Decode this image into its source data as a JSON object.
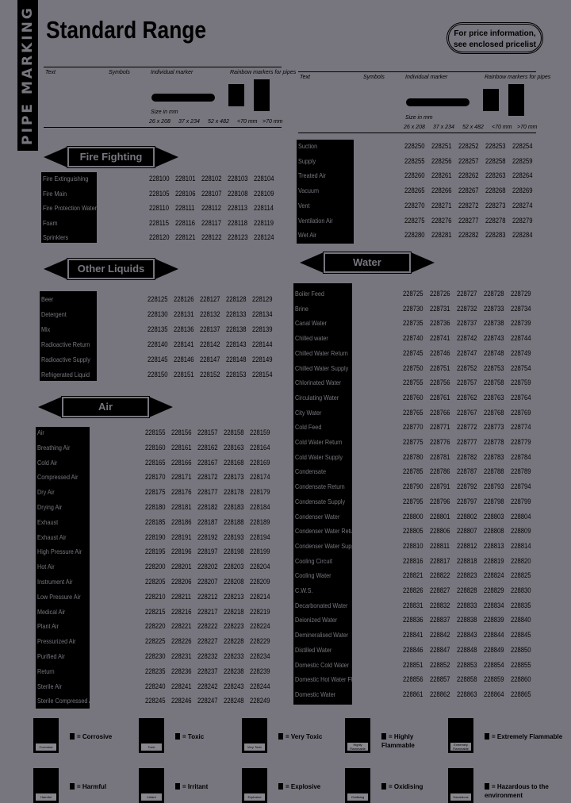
{
  "header": {
    "side_label": "PIPE MARKING",
    "title": "Standard Range",
    "price_note_line1": "For price information,",
    "price_note_line2": "see enclosed pricelist"
  },
  "columns": {
    "text": "Text",
    "symbols": "Symbols",
    "individual_marker": "Individual marker",
    "rainbow_markers": "Rainbow markers for pipes",
    "size_label": "Size in mm",
    "sizes": [
      "26 x 208",
      "37 x 234",
      "52 x 482",
      "<70 mm",
      ">70 mm"
    ]
  },
  "sections": [
    {
      "title": "Fire Fighting",
      "rows": [
        {
          "name": "Fire Extinguishing",
          "codes": [
            "228100",
            "228101",
            "228102",
            "228103",
            "228104"
          ]
        },
        {
          "name": "Fire Main",
          "codes": [
            "228105",
            "228106",
            "228107",
            "228108",
            "228109"
          ]
        },
        {
          "name": "Fire Protection Water",
          "codes": [
            "228110",
            "228111",
            "228112",
            "228113",
            "228114"
          ]
        },
        {
          "name": "Foam",
          "codes": [
            "228115",
            "228116",
            "228117",
            "228118",
            "228119"
          ]
        },
        {
          "name": "Sprinklers",
          "codes": [
            "228120",
            "228121",
            "228122",
            "228123",
            "228124"
          ]
        }
      ]
    },
    {
      "title": "Other Liquids",
      "rows": [
        {
          "name": "Beer",
          "codes": [
            "228125",
            "228126",
            "228127",
            "228128",
            "228129"
          ]
        },
        {
          "name": "Detergent",
          "codes": [
            "228130",
            "228131",
            "228132",
            "228133",
            "228134"
          ]
        },
        {
          "name": "Mix",
          "codes": [
            "228135",
            "228136",
            "228137",
            "228138",
            "228139"
          ]
        },
        {
          "name": "Radioactive Return",
          "codes": [
            "228140",
            "228141",
            "228142",
            "228143",
            "228144"
          ]
        },
        {
          "name": "Radioactive Supply",
          "codes": [
            "228145",
            "228146",
            "228147",
            "228148",
            "228149"
          ]
        },
        {
          "name": "Refrigerated Liquid",
          "codes": [
            "228150",
            "228151",
            "228152",
            "228153",
            "228154"
          ]
        }
      ]
    },
    {
      "title": "Air",
      "rows": [
        {
          "name": "Air",
          "codes": [
            "228155",
            "228156",
            "228157",
            "228158",
            "228159"
          ]
        },
        {
          "name": "Breathing Air",
          "codes": [
            "228160",
            "228161",
            "228162",
            "228163",
            "228164"
          ]
        },
        {
          "name": "Cold Air",
          "codes": [
            "228165",
            "228166",
            "228167",
            "228168",
            "228169"
          ]
        },
        {
          "name": "Compressed Air",
          "codes": [
            "228170",
            "228171",
            "228172",
            "228173",
            "228174"
          ]
        },
        {
          "name": "Dry Air",
          "codes": [
            "228175",
            "228176",
            "228177",
            "228178",
            "228179"
          ]
        },
        {
          "name": "Drying Air",
          "codes": [
            "228180",
            "228181",
            "228182",
            "228183",
            "228184"
          ]
        },
        {
          "name": "Exhaust",
          "codes": [
            "228185",
            "228186",
            "228187",
            "228188",
            "228189"
          ]
        },
        {
          "name": "Exhaust Air",
          "codes": [
            "228190",
            "228191",
            "228192",
            "228193",
            "228194"
          ]
        },
        {
          "name": "High Pressure Air",
          "codes": [
            "228195",
            "228196",
            "228197",
            "228198",
            "228199"
          ]
        },
        {
          "name": "Hot Air",
          "codes": [
            "228200",
            "228201",
            "228202",
            "228203",
            "228204"
          ]
        },
        {
          "name": "Instrument Air",
          "codes": [
            "228205",
            "228206",
            "228207",
            "228208",
            "228209"
          ]
        },
        {
          "name": "Low Pressure Air",
          "codes": [
            "228210",
            "228211",
            "228212",
            "228213",
            "228214"
          ]
        },
        {
          "name": "Medical Air",
          "codes": [
            "228215",
            "228216",
            "228217",
            "228218",
            "228219"
          ]
        },
        {
          "name": "Plant Air",
          "codes": [
            "228220",
            "228221",
            "228222",
            "228223",
            "228224"
          ]
        },
        {
          "name": "Pressurized Air",
          "codes": [
            "228225",
            "228226",
            "228227",
            "228228",
            "228229"
          ]
        },
        {
          "name": "Purified Air",
          "codes": [
            "228230",
            "228231",
            "228232",
            "228233",
            "228234"
          ]
        },
        {
          "name": "Return",
          "codes": [
            "228235",
            "228236",
            "228237",
            "228238",
            "228239"
          ]
        },
        {
          "name": "Sterile Air",
          "codes": [
            "228240",
            "228241",
            "228242",
            "228243",
            "228244"
          ]
        },
        {
          "name": "Sterile Compressed Air",
          "codes": [
            "228245",
            "228246",
            "228247",
            "228248",
            "228249"
          ]
        }
      ]
    },
    {
      "title": "",
      "rows": [
        {
          "name": "Suction",
          "codes": [
            "228250",
            "228251",
            "228252",
            "228253",
            "228254"
          ]
        },
        {
          "name": "Supply",
          "codes": [
            "228255",
            "228256",
            "228257",
            "228258",
            "228259"
          ]
        },
        {
          "name": "Treated Air",
          "codes": [
            "228260",
            "228261",
            "228262",
            "228263",
            "228264"
          ]
        },
        {
          "name": "Vacuum",
          "codes": [
            "228265",
            "228266",
            "228267",
            "228268",
            "228269"
          ]
        },
        {
          "name": "Vent",
          "codes": [
            "228270",
            "228271",
            "228272",
            "228273",
            "228274"
          ]
        },
        {
          "name": "Ventilation Air",
          "codes": [
            "228275",
            "228276",
            "228277",
            "228278",
            "228279"
          ]
        },
        {
          "name": "Wet Air",
          "codes": [
            "228280",
            "228281",
            "228282",
            "228283",
            "228284"
          ]
        }
      ]
    },
    {
      "title": "Water",
      "rows": [
        {
          "name": "Boiler Feed",
          "codes": [
            "228725",
            "228726",
            "228727",
            "228728",
            "228729"
          ]
        },
        {
          "name": "Brine",
          "codes": [
            "228730",
            "228731",
            "228732",
            "228733",
            "228734"
          ]
        },
        {
          "name": "Canal Water",
          "codes": [
            "228735",
            "228736",
            "228737",
            "228738",
            "228739"
          ]
        },
        {
          "name": "Chilled water",
          "codes": [
            "228740",
            "228741",
            "228742",
            "228743",
            "228744"
          ]
        },
        {
          "name": "Chilled Water Return",
          "codes": [
            "228745",
            "228746",
            "228747",
            "228748",
            "228749"
          ]
        },
        {
          "name": "Chilled Water Supply",
          "codes": [
            "228750",
            "228751",
            "228752",
            "228753",
            "228754"
          ]
        },
        {
          "name": "Chlorinated Water",
          "codes": [
            "228755",
            "228756",
            "228757",
            "228758",
            "228759"
          ]
        },
        {
          "name": "Circulating Water",
          "codes": [
            "228760",
            "228761",
            "228762",
            "228763",
            "228764"
          ]
        },
        {
          "name": "City Water",
          "codes": [
            "228765",
            "228766",
            "228767",
            "228768",
            "228769"
          ]
        },
        {
          "name": "Cold Feed",
          "codes": [
            "228770",
            "228771",
            "228772",
            "228773",
            "228774"
          ]
        },
        {
          "name": "Cold Water Return",
          "codes": [
            "228775",
            "228776",
            "228777",
            "228778",
            "228779"
          ]
        },
        {
          "name": "Cold Water Supply",
          "codes": [
            "228780",
            "228781",
            "228782",
            "228783",
            "228784"
          ]
        },
        {
          "name": "Condensate",
          "codes": [
            "228785",
            "228786",
            "228787",
            "228788",
            "228789"
          ]
        },
        {
          "name": "Condensate Return",
          "codes": [
            "228790",
            "228791",
            "228792",
            "228793",
            "228794"
          ]
        },
        {
          "name": "Condensate Supply",
          "codes": [
            "228795",
            "228796",
            "228797",
            "228798",
            "228799"
          ]
        },
        {
          "name": "Condenser Water",
          "codes": [
            "228800",
            "228801",
            "228802",
            "228803",
            "228804"
          ]
        },
        {
          "name": "Condenser Water Return",
          "codes": [
            "228805",
            "228806",
            "228807",
            "228808",
            "228809"
          ]
        },
        {
          "name": "Condenser Water Supply",
          "codes": [
            "228810",
            "228811",
            "228812",
            "228813",
            "228814"
          ]
        },
        {
          "name": "Cooling Circuit",
          "codes": [
            "228816",
            "228817",
            "228818",
            "228819",
            "228820"
          ]
        },
        {
          "name": "Cooling Water",
          "codes": [
            "228821",
            "228822",
            "228823",
            "228824",
            "228825"
          ]
        },
        {
          "name": "C.W.S.",
          "codes": [
            "228826",
            "228827",
            "228828",
            "228829",
            "228830"
          ]
        },
        {
          "name": "Decarbonated Water",
          "codes": [
            "228831",
            "228832",
            "228833",
            "228834",
            "228835"
          ]
        },
        {
          "name": "Deionized Water",
          "codes": [
            "228836",
            "228837",
            "228838",
            "228839",
            "228840"
          ]
        },
        {
          "name": "Demineralised Water",
          "codes": [
            "228841",
            "228842",
            "228843",
            "228844",
            "228845"
          ]
        },
        {
          "name": "Distilled Water",
          "codes": [
            "228846",
            "228847",
            "228848",
            "228849",
            "228850"
          ]
        },
        {
          "name": "Domestic Cold Water",
          "codes": [
            "228851",
            "228852",
            "228853",
            "228854",
            "228855"
          ]
        },
        {
          "name": "Domestic Hot Water Flow",
          "codes": [
            "228856",
            "228857",
            "228858",
            "228859",
            "228860"
          ]
        },
        {
          "name": "Domestic Water",
          "codes": [
            "228861",
            "228862",
            "228863",
            "228864",
            "228865"
          ]
        }
      ]
    }
  ],
  "legend": [
    {
      "label": "= Corrosive",
      "symbol_caption": "Corrosive"
    },
    {
      "label": "= Toxic",
      "symbol_caption": "Toxic"
    },
    {
      "label": "= Very Toxic",
      "symbol_caption": "Very Toxic"
    },
    {
      "label": "= Highly Flammable",
      "symbol_caption": "Highly Flammable"
    },
    {
      "label": "= Extremely Flammable",
      "symbol_caption": "Extremely Flammable"
    },
    {
      "label": "= Harmful",
      "symbol_caption": "Harmful"
    },
    {
      "label": "= Irritant",
      "symbol_caption": "Irritant"
    },
    {
      "label": "= Explosive",
      "symbol_caption": "Explosive"
    },
    {
      "label": "= Oxidising",
      "symbol_caption": "Oxidising"
    },
    {
      "label": "= Hazardous to the environment",
      "symbol_caption": "Hazardous"
    }
  ]
}
